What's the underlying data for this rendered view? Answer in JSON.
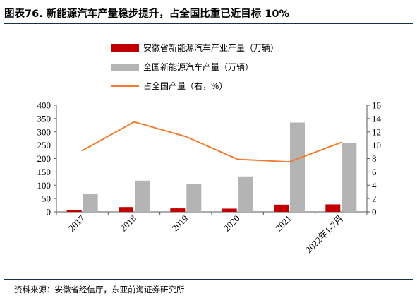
{
  "title": "图表76. 新能源汽车产量稳步提升，占全国比重已近目标 10%",
  "source": "资料来源：安徽省经信厅，东亚前海证券研究所",
  "colors": {
    "anhui": "#c00000",
    "national": "#b4b4b4",
    "share": "#ed7d31",
    "axis": "#595959",
    "rule": "#1f2d4d"
  },
  "chart_data": {
    "type": "bar",
    "categories": [
      "2017",
      "2018",
      "2019",
      "2020",
      "2021",
      "2022年1-7月"
    ],
    "series": [
      {
        "name": "安徽省新能源汽车产业产量（万辆）",
        "type": "bar",
        "axis": "left",
        "values": [
          8,
          18,
          13,
          12,
          27,
          28
        ]
      },
      {
        "name": "全国新能源汽车产量（万辆）",
        "type": "bar",
        "axis": "left",
        "values": [
          69,
          117,
          105,
          133,
          335,
          258
        ]
      },
      {
        "name": "占全国产量（右，%）",
        "type": "line",
        "axis": "right",
        "values": [
          9.2,
          13.5,
          11.3,
          7.9,
          7.5,
          10.4
        ]
      }
    ],
    "y_left": {
      "min": 0,
      "max": 400,
      "ticks": [
        0,
        50,
        100,
        150,
        200,
        250,
        300,
        350,
        400
      ]
    },
    "y_right": {
      "min": 0,
      "max": 16,
      "ticks": [
        0,
        2,
        4,
        6,
        8,
        10,
        12,
        14,
        16
      ]
    },
    "legend_placement": "top-left",
    "grid": false
  }
}
